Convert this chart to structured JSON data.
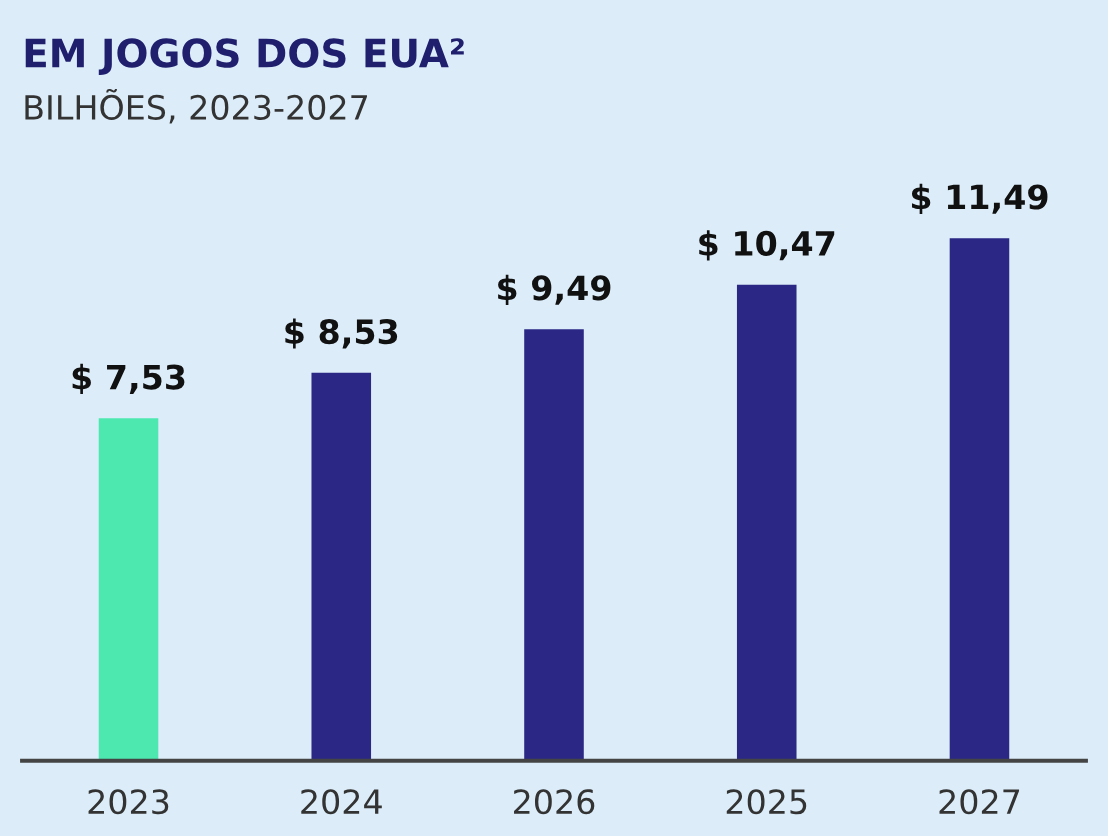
{
  "chart_data": {
    "type": "bar",
    "title": "EM JOGOS DOS EUA²",
    "subtitle": "BILHÕES, 2023-2027",
    "categories": [
      "2023",
      "2024",
      "2026",
      "2025",
      "2027"
    ],
    "values": [
      7.53,
      8.53,
      9.49,
      10.47,
      11.49
    ],
    "colors": [
      "#4de8b0",
      "#2a2785",
      "#2a2785",
      "#2a2785",
      "#2a2785"
    ],
    "value_labels": [
      "$ 7,53",
      "$ 8,53",
      "$ 9,49",
      "$ 10,47",
      "$ 11,49"
    ],
    "grid": false,
    "legend": false
  }
}
